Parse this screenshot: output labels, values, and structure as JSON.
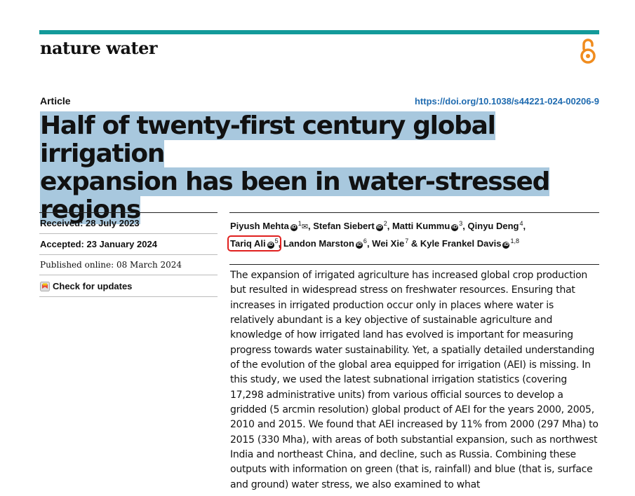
{
  "header": {
    "journal": "nature water"
  },
  "article": {
    "type": "Article",
    "doi": "https://doi.org/10.1038/s44221-024-00206-9",
    "title_line1": "Half of twenty-first century global irrigation",
    "title_line2": "expansion has been in water-stressed regions"
  },
  "meta": {
    "received": "Received: 28 July 2023",
    "accepted": "Accepted: 23 January 2024",
    "published": "Published online: 08 March 2024",
    "check_updates": "Check for updates"
  },
  "authors": [
    {
      "name": "Piyush Mehta",
      "aff": "1",
      "orcid": true,
      "mail": true
    },
    {
      "name": "Stefan Siebert",
      "aff": "2",
      "orcid": true
    },
    {
      "name": "Matti Kummu",
      "aff": "3",
      "orcid": true
    },
    {
      "name": "Qinyu Deng",
      "aff": "4",
      "orcid": false
    },
    {
      "name": "Tariq Ali",
      "aff": "5",
      "orcid": true,
      "highlighted": true
    },
    {
      "name": "Landon Marston",
      "aff": "6",
      "orcid": true
    },
    {
      "name": "Wei Xie",
      "aff": "7",
      "orcid": false
    },
    {
      "name": "Kyle Frankel Davis",
      "aff": "1,8",
      "orcid": true
    }
  ],
  "author_separators": {
    "comma": ",",
    "and": "&"
  },
  "abstract": "The expansion of irrigated agriculture has increased global crop production but resulted in widespread stress on freshwater resources. Ensuring that increases in irrigated production occur only in places where water is relatively abundant is a key objective of sustainable agriculture and knowledge of how irrigated land has evolved is important for measuring progress towards water sustainability. Yet, a spatially detailed understanding of the evolution of the global area equipped for irrigation (AEI) is missing. In this study, we used the latest subnational irrigation statistics (covering 17,298 administrative units) from various official sources to develop a gridded (5 arcmin resolution) global product of AEI for the years 2000, 2005, 2010 and 2015. We found that AEI increased by 11% from 2000 (297 Mha) to 2015 (330 Mha), with areas of both substantial expansion, such as northwest India and northeast China, and decline, such as Russia. Combining these outputs with information on green (that is, rainfall) and blue (that is, surface and ground) water stress, we also examined to what",
  "colors": {
    "accent_bar": "#139a9a",
    "open_access_icon": "#f08c1e",
    "doi_link": "#1f6bb0",
    "title_highlight": "#a8c8de",
    "annotation_box": "#e0201e"
  },
  "icons": {
    "open_access": "open-access-icon",
    "orcid": "orcid-icon",
    "mail": "mail-icon",
    "check_updates": "crossmark-icon"
  }
}
